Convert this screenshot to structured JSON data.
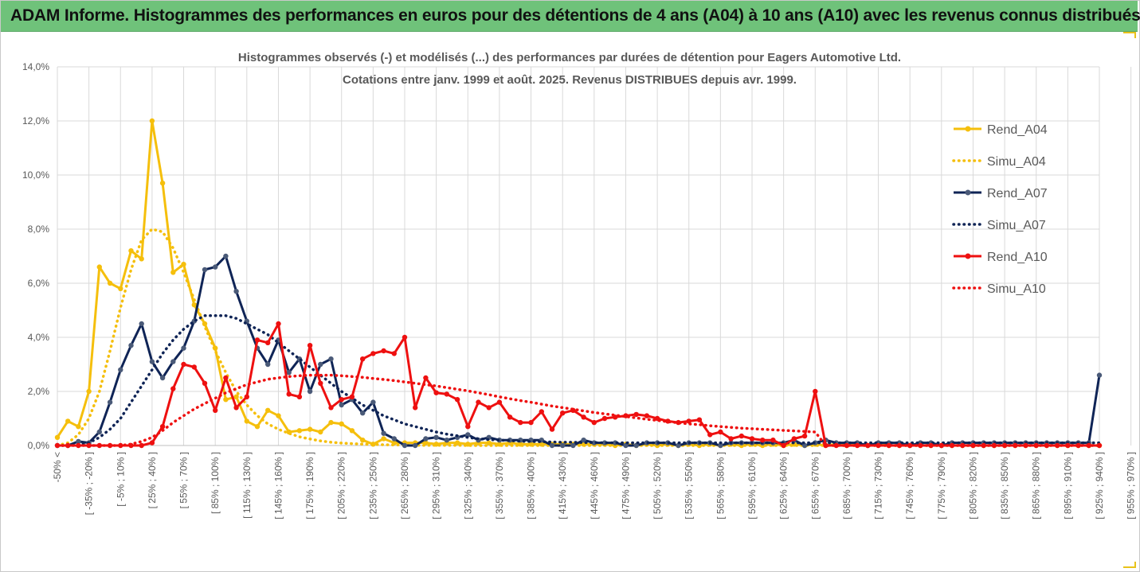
{
  "banner": {
    "title": "ADAM Informe. Histogrammes des performances en euros pour des détentions de 4 ans (A04) à 10 ans (A10) avec les revenus connus distribués",
    "color": "#6fc27a"
  },
  "chart_data": {
    "type": "line",
    "title": "Histogrammes observés (-) et modélisés (...) des performances par durées de détention pour Eagers Automotive Ltd.",
    "subtitle": "Cotations entre janv. 1999 et août. 2025. Revenus DISTRIBUES depuis avr. 1999.",
    "ylim": [
      0,
      14
    ],
    "yticks": [
      "0,0%",
      "2,0%",
      "4,0%",
      "6,0%",
      "8,0%",
      "10,0%",
      "12,0%",
      "14,0%"
    ],
    "grid": true,
    "legend_position": "right",
    "x_tick_labels": [
      "-50% <",
      "[ -35% ; -20% ]",
      "[ -5% ; 10% ]",
      "[ 25% ; 40% ]",
      "[ 55% ; 70% ]",
      "[ 85% ; 100% ]",
      "[ 115% ; 130% ]",
      "[ 145% ; 160% ]",
      "[ 175% ; 190% ]",
      "[ 205% ; 220% ]",
      "[ 235% ; 250% ]",
      "[ 265% ; 280% ]",
      "[ 295% ; 310% ]",
      "[ 325% ; 340% ]",
      "[ 355% ; 370% ]",
      "[ 385% ; 400% ]",
      "[ 415% ; 430% ]",
      "[ 445% ; 460% ]",
      "[ 475% ; 490% ]",
      "[ 505% ; 520% ]",
      "[ 535% ; 550% ]",
      "[ 565% ; 580% ]",
      "[ 595% ; 610% ]",
      "[ 625% ; 640% ]",
      "[ 655% ; 670% ]",
      "[ 685% ; 700% ]",
      "[ 715% ; 730% ]",
      "[ 745% ; 760% ]",
      "[ 775% ; 790% ]",
      "[ 805% ; 820% ]",
      "[ 835% ; 850% ]",
      "[ 865% ; 880% ]",
      "[ 895% ; 910% ]",
      "[ 925% ; 940% ]",
      "[ 955% ; 970% ]"
    ],
    "series": [
      {
        "name": "Rend_A04",
        "color": "#f5bf0c",
        "style": "solid",
        "values": [
          0.3,
          0.9,
          0.7,
          2.0,
          6.6,
          6.0,
          5.8,
          7.2,
          6.9,
          12.0,
          9.7,
          6.4,
          6.7,
          5.2,
          4.5,
          3.6,
          1.7,
          1.8,
          0.9,
          0.7,
          1.3,
          1.1,
          0.5,
          0.55,
          0.6,
          0.5,
          0.85,
          0.8,
          0.55,
          0.2,
          0.05,
          0.25,
          0.1,
          0.1,
          0.1,
          0.1,
          0.05,
          0.1,
          0.1,
          0.05,
          0.1,
          0.1,
          0.05,
          0.1,
          0.05,
          0.05,
          0.05,
          0.05,
          0.05,
          0.05,
          0.05,
          0.05,
          0.05,
          0.0,
          0.05,
          0.0,
          0.05,
          0.0,
          0.05,
          0.0,
          0.05,
          0.0,
          0.05,
          0.0,
          0.05,
          0.0,
          0.05,
          0.0,
          0.05,
          0.0,
          0.05,
          0.0,
          0.05,
          0.0,
          0.05,
          0.0,
          0.05,
          0.0,
          0.05,
          0.0,
          0.0,
          0.0,
          0.0,
          0.0,
          0.0,
          0.0,
          0.0,
          0.0,
          0.0,
          0.0,
          0.0,
          0.0,
          0.0,
          0.0,
          0.0,
          0.0,
          0.0,
          0.0,
          0.0,
          0.0
        ]
      },
      {
        "name": "Simu_A04",
        "color": "#f5bf0c",
        "style": "dotted",
        "values": [
          0.0,
          0.1,
          0.4,
          1.0,
          2.0,
          3.5,
          5.1,
          6.5,
          7.6,
          8.0,
          7.9,
          7.3,
          6.4,
          5.4,
          4.4,
          3.5,
          2.7,
          2.0,
          1.5,
          1.1,
          0.8,
          0.6,
          0.45,
          0.32,
          0.24,
          0.17,
          0.12,
          0.09,
          0.07,
          0.05,
          0.04,
          0.03,
          0.02,
          0.02,
          0.01,
          0.01,
          0.01,
          0.01,
          0.01,
          0.0,
          0.0,
          0.0,
          0.0,
          0.0,
          0.0,
          0.0,
          0.0,
          0.0,
          0.0,
          0.0,
          0.0,
          0.0,
          0.0,
          0.0,
          0.0,
          0.0,
          0.0,
          0.0,
          0.0,
          0.0,
          0.0,
          0.0,
          0.0,
          0.0,
          0.0,
          0.0,
          0.0,
          0.0,
          0.0,
          0.0,
          0.0,
          0.0,
          0.0,
          0.0,
          0.0,
          0.0,
          0.0,
          0.0,
          0.0,
          0.0,
          0.0,
          0.0,
          0.0,
          0.0,
          0.0,
          0.0,
          0.0,
          0.0,
          0.0,
          0.0,
          0.0,
          0.0,
          0.0,
          0.0,
          0.0,
          0.0,
          0.0,
          0.0,
          0.0,
          0.0
        ]
      },
      {
        "name": "Rend_A07",
        "color": "#0f2456",
        "style": "solid",
        "values": [
          0.0,
          0.0,
          0.15,
          0.1,
          0.5,
          1.6,
          2.8,
          3.7,
          4.5,
          3.1,
          2.5,
          3.1,
          3.6,
          4.6,
          6.5,
          6.6,
          7.0,
          5.7,
          4.6,
          3.6,
          3.0,
          3.9,
          2.7,
          3.2,
          2.0,
          3.0,
          3.2,
          1.5,
          1.7,
          1.2,
          1.6,
          0.45,
          0.25,
          0.0,
          0.0,
          0.25,
          0.3,
          0.2,
          0.3,
          0.4,
          0.2,
          0.3,
          0.2,
          0.2,
          0.2,
          0.2,
          0.2,
          0.0,
          0.0,
          0.0,
          0.2,
          0.1,
          0.1,
          0.1,
          0.0,
          0.0,
          0.1,
          0.1,
          0.1,
          0.0,
          0.1,
          0.1,
          0.1,
          0.0,
          0.1,
          0.1,
          0.1,
          0.1,
          0.1,
          0.1,
          0.2,
          0.0,
          0.1,
          0.2,
          0.1,
          0.1,
          0.1,
          0.0,
          0.1,
          0.1,
          0.1,
          0.0,
          0.1,
          0.1,
          0.0,
          0.1,
          0.1,
          0.1,
          0.1,
          0.1,
          0.1,
          0.1,
          0.1,
          0.1,
          0.1,
          0.1,
          0.1,
          0.1,
          0.1,
          2.6
        ]
      },
      {
        "name": "Simu_A07",
        "color": "#0f2456",
        "style": "dotted",
        "values": [
          0.0,
          0.0,
          0.05,
          0.1,
          0.3,
          0.6,
          1.0,
          1.6,
          2.2,
          2.8,
          3.4,
          3.9,
          4.3,
          4.6,
          4.8,
          4.8,
          4.8,
          4.7,
          4.5,
          4.3,
          4.1,
          3.8,
          3.5,
          3.2,
          2.9,
          2.6,
          2.3,
          2.0,
          1.75,
          1.5,
          1.3,
          1.1,
          0.95,
          0.8,
          0.7,
          0.6,
          0.5,
          0.42,
          0.36,
          0.3,
          0.25,
          0.22,
          0.2,
          0.18,
          0.16,
          0.15,
          0.14,
          0.13,
          0.12,
          0.12,
          0.11,
          0.11,
          0.1,
          0.1,
          0.1,
          0.1,
          0.1,
          0.1,
          0.1,
          0.1,
          0.1,
          0.1,
          0.1,
          0.1,
          0.1,
          0.1,
          0.1,
          0.1,
          0.1,
          0.1,
          0.1,
          0.1,
          0.1,
          0.1,
          0.1,
          0.1,
          0.1,
          0.1,
          0.1,
          0.1,
          0.1,
          0.1,
          0.1,
          0.1,
          0.1,
          0.1,
          0.1,
          0.1,
          0.1,
          0.1,
          0.1,
          0.1,
          0.1,
          0.1,
          0.1,
          0.1,
          0.1,
          0.1,
          0.1,
          0.1
        ]
      },
      {
        "name": "Rend_A10",
        "color": "#ee1010",
        "style": "solid",
        "values": [
          0.0,
          0.0,
          0.0,
          0.0,
          0.0,
          0.0,
          0.0,
          0.0,
          0.0,
          0.1,
          0.7,
          2.1,
          3.0,
          2.9,
          2.3,
          1.3,
          2.5,
          1.4,
          1.8,
          3.9,
          3.8,
          4.5,
          1.9,
          1.8,
          3.7,
          2.3,
          1.4,
          1.7,
          1.8,
          3.2,
          3.4,
          3.5,
          3.4,
          4.0,
          1.4,
          2.5,
          1.95,
          1.9,
          1.7,
          0.7,
          1.6,
          1.4,
          1.6,
          1.05,
          0.85,
          0.85,
          1.25,
          0.6,
          1.2,
          1.3,
          1.05,
          0.85,
          1.0,
          1.05,
          1.1,
          1.15,
          1.1,
          1.0,
          0.9,
          0.85,
          0.9,
          0.95,
          0.4,
          0.5,
          0.25,
          0.35,
          0.25,
          0.2,
          0.2,
          0.0,
          0.25,
          0.35,
          2.0,
          0.0,
          0.0,
          0.0,
          0.0,
          0.0,
          0.0,
          0.0,
          0.0,
          0.0,
          0.0,
          0.0,
          0.0,
          0.0,
          0.0,
          0.0,
          0.0,
          0.0,
          0.0,
          0.0,
          0.0,
          0.0,
          0.0,
          0.0,
          0.0,
          0.0,
          0.0,
          0.0
        ]
      },
      {
        "name": "Simu_A10",
        "color": "#ee1010",
        "style": "dotted",
        "values": [
          0.0,
          0.0,
          0.0,
          0.0,
          0.0,
          0.0,
          0.0,
          0.05,
          0.15,
          0.3,
          0.55,
          0.85,
          1.1,
          1.35,
          1.55,
          1.75,
          1.95,
          2.1,
          2.25,
          2.35,
          2.45,
          2.5,
          2.55,
          2.58,
          2.6,
          2.6,
          2.6,
          2.58,
          2.55,
          2.52,
          2.48,
          2.44,
          2.4,
          2.35,
          2.3,
          2.25,
          2.2,
          2.14,
          2.08,
          2.02,
          1.95,
          1.88,
          1.8,
          1.73,
          1.66,
          1.6,
          1.53,
          1.46,
          1.4,
          1.34,
          1.28,
          1.22,
          1.17,
          1.12,
          1.07,
          1.02,
          0.97,
          0.93,
          0.88,
          0.84,
          0.8,
          0.77,
          0.73,
          0.7,
          0.67,
          0.64,
          0.62,
          0.6,
          0.58,
          0.56,
          0.54,
          0.52,
          0.5,
          0.0,
          0.0,
          0.0,
          0.0,
          0.0,
          0.0,
          0.0,
          0.0,
          0.0,
          0.0,
          0.0,
          0.0,
          0.0,
          0.0,
          0.0,
          0.0,
          0.0,
          0.0,
          0.0,
          0.0,
          0.0,
          0.0,
          0.0,
          0.0,
          0.0,
          0.0,
          0.0
        ]
      }
    ]
  }
}
